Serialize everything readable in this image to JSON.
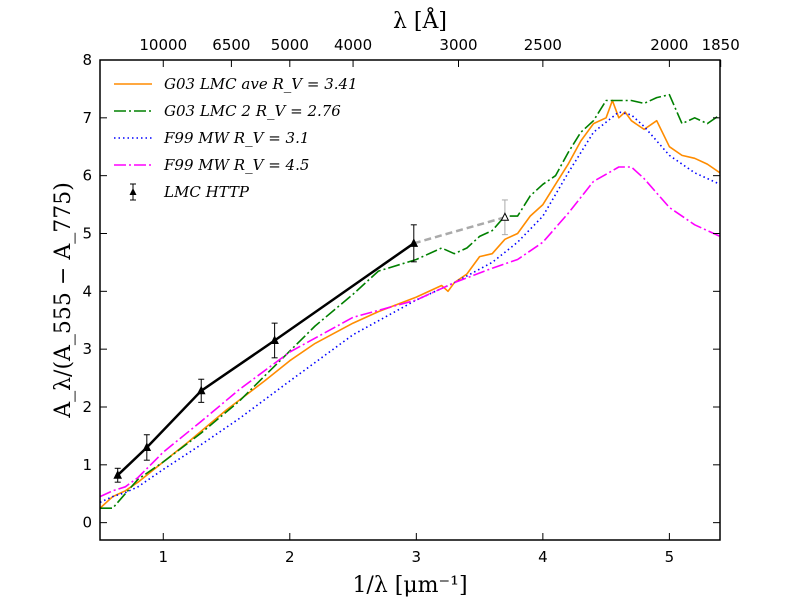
{
  "chart_data": {
    "type": "line",
    "xlabel": "1/λ [μm⁻¹]",
    "ylabel": "A_λ/(A_555 − A_775)",
    "top_xlabel": "λ [Å]",
    "xlim": [
      0.5,
      5.4
    ],
    "ylim": [
      -0.3,
      8
    ],
    "xticks": [
      1,
      2,
      3,
      4,
      5
    ],
    "yticks": [
      0,
      1,
      2,
      3,
      4,
      5,
      6,
      7,
      8
    ],
    "top_ticks": [
      {
        "label": "10000",
        "wavelength": 10000
      },
      {
        "label": "6500",
        "wavelength": 6500
      },
      {
        "label": "5000",
        "wavelength": 5000
      },
      {
        "label": "4000",
        "wavelength": 4000
      },
      {
        "label": "3000",
        "wavelength": 3000
      },
      {
        "label": "2500",
        "wavelength": 2500
      },
      {
        "label": "2000",
        "wavelength": 2000
      },
      {
        "label": "1850",
        "wavelength": 1850
      }
    ],
    "legend_position": "top-left",
    "series": [
      {
        "name": "G03 LMC ave R_V=3.41",
        "label": "G03 LMC ave R_V = 3.41",
        "color": "#ff8c00",
        "style": "solid",
        "x": [
          0.5,
          0.6,
          0.7,
          0.8,
          1.0,
          1.2,
          1.5,
          1.8,
          2.0,
          2.2,
          2.5,
          2.7,
          3.0,
          3.2,
          3.25,
          3.3,
          3.4,
          3.5,
          3.6,
          3.7,
          3.8,
          3.9,
          4.0,
          4.1,
          4.2,
          4.3,
          4.4,
          4.5,
          4.55,
          4.6,
          4.65,
          4.7,
          4.8,
          4.9,
          5.0,
          5.1,
          5.2,
          5.3,
          5.4
        ],
        "y": [
          0.25,
          0.45,
          0.55,
          0.7,
          1.05,
          1.4,
          1.95,
          2.45,
          2.8,
          3.1,
          3.45,
          3.65,
          3.9,
          4.1,
          4.0,
          4.15,
          4.3,
          4.6,
          4.65,
          4.9,
          5.0,
          5.3,
          5.5,
          5.85,
          6.2,
          6.6,
          6.9,
          7.0,
          7.3,
          7.0,
          7.1,
          6.95,
          6.8,
          6.95,
          6.5,
          6.35,
          6.3,
          6.2,
          6.05
        ]
      },
      {
        "name": "G03 LMC 2 R_V=2.76",
        "label": "G03 LMC 2 R_V = 2.76",
        "color": "#008000",
        "style": "dashdot",
        "x": [
          0.5,
          0.6,
          0.7,
          0.8,
          1.0,
          1.3,
          1.6,
          1.9,
          2.2,
          2.5,
          2.7,
          3.0,
          3.2,
          3.3,
          3.4,
          3.5,
          3.6,
          3.7,
          3.8,
          3.9,
          4.0,
          4.1,
          4.2,
          4.3,
          4.4,
          4.5,
          4.6,
          4.7,
          4.8,
          4.9,
          5.0,
          5.1,
          5.2,
          5.3,
          5.4
        ],
        "y": [
          0.25,
          0.25,
          0.5,
          0.75,
          1.05,
          1.55,
          2.1,
          2.75,
          3.4,
          3.95,
          4.35,
          4.55,
          4.75,
          4.65,
          4.75,
          4.95,
          5.05,
          5.3,
          5.3,
          5.65,
          5.85,
          6.0,
          6.4,
          6.75,
          6.95,
          7.3,
          7.3,
          7.3,
          7.25,
          7.35,
          7.4,
          6.9,
          7.0,
          6.9,
          7.05
        ]
      },
      {
        "name": "F99 MW R_V=3.1",
        "label": "F99 MW R_V = 3.1",
        "color": "#0000ff",
        "style": "dotted",
        "x": [
          0.5,
          0.6,
          0.7,
          0.8,
          1.0,
          1.3,
          1.6,
          2.0,
          2.5,
          3.0,
          3.3,
          3.6,
          3.8,
          4.0,
          4.2,
          4.4,
          4.6,
          4.7,
          4.8,
          5.0,
          5.2,
          5.4
        ],
        "y": [
          0.35,
          0.45,
          0.52,
          0.62,
          0.92,
          1.35,
          1.8,
          2.45,
          3.25,
          3.85,
          4.15,
          4.5,
          4.85,
          5.3,
          6.05,
          6.75,
          7.1,
          7.05,
          6.85,
          6.35,
          6.05,
          5.85
        ]
      },
      {
        "name": "F99 MW R_V=4.5",
        "label": "F99 MW R_V = 4.5",
        "color": "#ff00ff",
        "style": "dashdot",
        "x": [
          0.5,
          0.6,
          0.7,
          0.8,
          1.0,
          1.3,
          1.6,
          2.0,
          2.5,
          3.0,
          3.3,
          3.6,
          3.8,
          4.0,
          4.2,
          4.4,
          4.6,
          4.7,
          4.8,
          5.0,
          5.2,
          5.4
        ],
        "y": [
          0.45,
          0.55,
          0.62,
          0.78,
          1.22,
          1.75,
          2.3,
          2.95,
          3.55,
          3.85,
          4.15,
          4.4,
          4.55,
          4.85,
          5.35,
          5.9,
          6.15,
          6.15,
          5.95,
          5.45,
          5.15,
          4.95
        ]
      }
    ],
    "observations": {
      "name": "LMC HTTP",
      "label": "LMC HTTP",
      "color": "#000000",
      "points": [
        {
          "x": 0.64,
          "y": 0.82,
          "err": 0.12
        },
        {
          "x": 0.87,
          "y": 1.3,
          "err": 0.22
        },
        {
          "x": 1.3,
          "y": 2.28,
          "err": 0.2
        },
        {
          "x": 1.88,
          "y": 3.15,
          "err": 0.3
        },
        {
          "x": 2.98,
          "y": 4.83,
          "err": 0.32
        }
      ],
      "extrapolated": {
        "x": 3.7,
        "y": 5.28,
        "err": 0.3,
        "color": "#aaaaaa"
      }
    }
  }
}
